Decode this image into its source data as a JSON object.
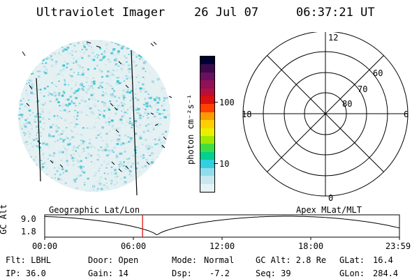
{
  "header": {
    "instrument": "Ultraviolet Imager",
    "date": "26 Jul 07",
    "time": "06:37:21 UT"
  },
  "colorbar": {
    "unit_label": "photon cm⁻²s⁻¹",
    "tick_100": "100",
    "tick_10": "10",
    "colors": [
      "#000033",
      "#3a0a4a",
      "#6a1060",
      "#90105a",
      "#b8103a",
      "#dd1010",
      "#ff4000",
      "#ff9a00",
      "#ffd000",
      "#e8f000",
      "#a0e800",
      "#40dd40",
      "#00d090",
      "#30d0e0",
      "#90dcea",
      "#c8e8ef",
      "#e6f2f4"
    ]
  },
  "polar_plot": {
    "mlt_labels": {
      "top": "12",
      "bottom": "0",
      "left": "18",
      "right": "6"
    },
    "lat_labels": [
      "60",
      "70",
      "80"
    ]
  },
  "timeline": {
    "ylabel": "GC Alt",
    "ymax": "9.0",
    "ymin": "1.8",
    "left_title": "Geographic Lat/Lon",
    "right_title": "Apex MLat/MLT",
    "ticks": [
      "00:00",
      "06:00",
      "12:00",
      "18:00",
      "23:59"
    ],
    "marker_hour": 6.62,
    "marker_color": "#dd0000"
  },
  "info": {
    "flt": "Flt: LBHL",
    "ip": "IP: 36.0",
    "door": "Door: Open",
    "gain": "Gain: 14",
    "mode_label": "Mode:",
    "mode_value": "Normal",
    "dsp_label": "Dsp:",
    "dsp_value": "-7.2",
    "gcalt": "GC Alt: 2.8 Re",
    "seq": "Seq: 39",
    "glat_label": "GLat:",
    "glat_value": "16.4",
    "glon_label": "GLon:",
    "glon_value": "284.4"
  }
}
